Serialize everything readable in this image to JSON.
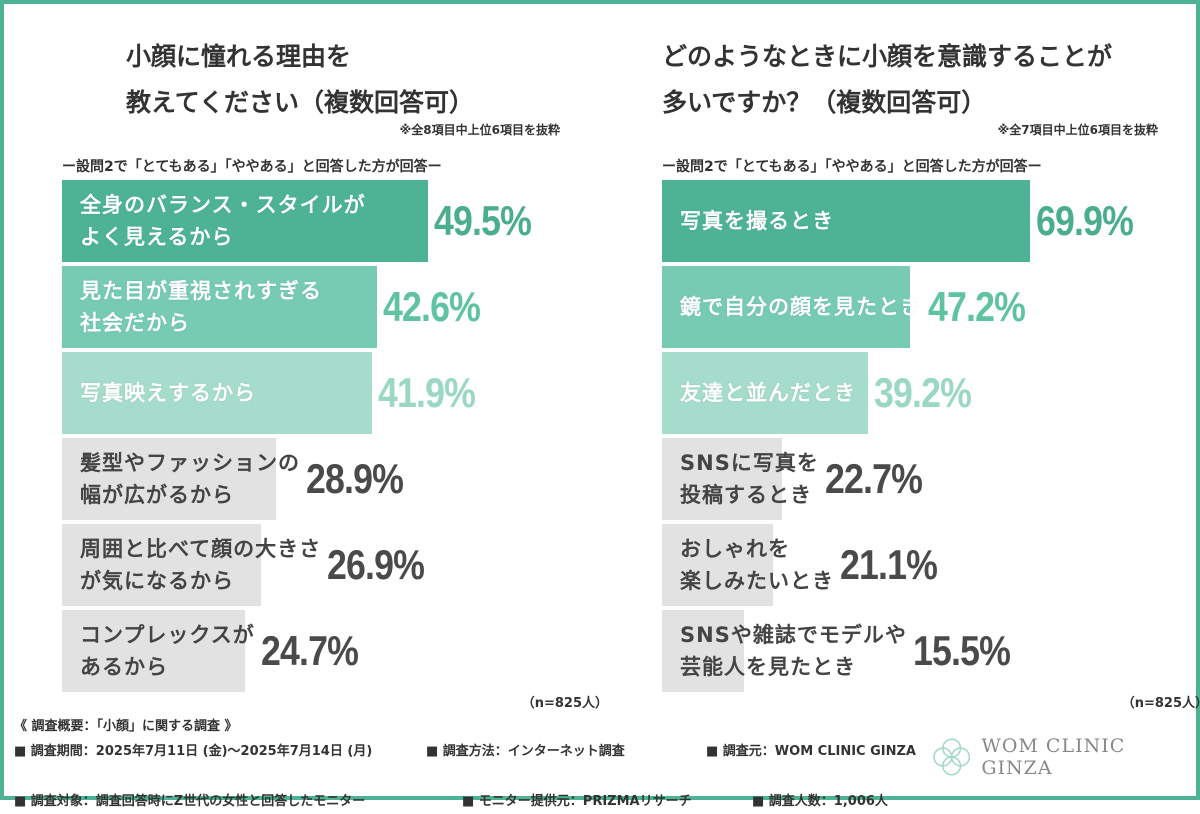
{
  "charts_meta": {
    "colors": {
      "bar": [
        "#4db394",
        "#76cbb2",
        "#a6dccb",
        "#e2e2e2",
        "#e2e2e2",
        "#e2e2e2"
      ],
      "pct": [
        "#4aae8e",
        "#5fc2a3",
        "#9ad7c4",
        "#4a4a4a",
        "#4a4a4a",
        "#4a4a4a"
      ],
      "label": [
        "#ffffff",
        "#ffffff",
        "#ffffff",
        "#444444",
        "#444444",
        "#444444"
      ]
    }
  },
  "chart_data": [
    {
      "type": "bar",
      "orientation": "horizontal",
      "title": "小顔に憧れる理由を\n教えてください（複数回答可）",
      "note": "※全8項目中上位6項目を抜粋",
      "subtitle": "ー設問2で「とてもある」「ややある」と回答した方が回答ー",
      "categories": [
        "全身のバランス・スタイルが\nよく見えるから",
        "見た目が重視されすぎる\n社会だから",
        "写真映えするから",
        "髪型やファッションの\n幅が広がるから",
        "周囲と比べて顔の大きさ\nが気になるから",
        "コンプレックスが\nあるから"
      ],
      "values": [
        49.5,
        42.6,
        41.9,
        28.9,
        26.9,
        24.7
      ],
      "labels": [
        "49.5%",
        "42.6%",
        "41.9%",
        "28.9%",
        "26.9%",
        "24.7%"
      ],
      "unit": "%",
      "sample": "（n=825人）"
    },
    {
      "type": "bar",
      "orientation": "horizontal",
      "title": "どのようなときに小顔を意識することが\n多いですか？（複数回答可）",
      "note": "※全7項目中上位6項目を抜粋",
      "subtitle": "ー設問2で「とてもある」「ややある」と回答した方が回答ー",
      "categories": [
        "写真を撮るとき",
        "鏡で自分の顔を見たとき",
        "友達と並んだとき",
        "SNSに写真を\n投稿するとき",
        "おしゃれを\n楽しみたいとき",
        "SNSや雑誌でモデルや\n芸能人を見たとき"
      ],
      "values": [
        69.9,
        47.2,
        39.2,
        22.7,
        21.1,
        15.5
      ],
      "labels": [
        "69.9%",
        "47.2%",
        "39.2%",
        "22.7%",
        "21.1%",
        "15.5%"
      ],
      "unit": "%",
      "sample": "（n=825人）"
    }
  ],
  "footer": {
    "heading": "《 調査概要：「小顔」に関する調査 》",
    "items": [
      "■ 調査期間：2025年7月11日 (金)～2025年7月14日 (月)",
      "■ 調査方法：インターネット調査",
      "■ 調査元：WOM CLINIC GINZA",
      "■ 調査対象：調査回答時にZ世代の女性と回答したモニター",
      "■ モニター提供元：PRIZMAリサーチ",
      "■ 調査人数：1,006人"
    ]
  },
  "logo": {
    "text": "WOM CLINIC GINZA"
  }
}
